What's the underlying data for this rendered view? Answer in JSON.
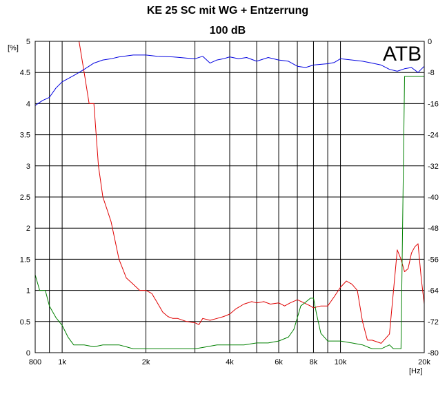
{
  "chart_data": {
    "type": "line",
    "title": "KE 25 SC mit WG + Entzerrung",
    "subtitle": "100 dB",
    "logo_text": "ATB",
    "x_unit": "[Hz]",
    "x_scale": "log",
    "xlim": [
      800,
      20000
    ],
    "x_ticks": [
      {
        "value": 800,
        "label": "800"
      },
      {
        "value": 1000,
        "label": "1k"
      },
      {
        "value": 2000,
        "label": "2k"
      },
      {
        "value": 4000,
        "label": "4k"
      },
      {
        "value": 6000,
        "label": "6k"
      },
      {
        "value": 8000,
        "label": "8k"
      },
      {
        "value": 10000,
        "label": "10k"
      },
      {
        "value": 20000,
        "label": "20k"
      }
    ],
    "x_gridlines": [
      800,
      900,
      1000,
      2000,
      3000,
      4000,
      5000,
      6000,
      7000,
      8000,
      9000,
      10000,
      20000
    ],
    "y_left_unit": "[%]",
    "ylim_left": [
      0,
      5
    ],
    "y_left_ticks": [
      "0",
      "0.5",
      "1",
      "1.5",
      "2",
      "2.5",
      "3",
      "3.5",
      "4",
      "4.5",
      "5"
    ],
    "ylim_right": [
      -80,
      0
    ],
    "y_right_ticks": [
      "0",
      "-8",
      "-16",
      "-24",
      "-32",
      "-40",
      "-48",
      "-56",
      "-64",
      "-72",
      "-80"
    ],
    "grid": true,
    "colors": {
      "red": "#e00000",
      "green": "#008000",
      "blue": "#0000e0",
      "grid": "#000000"
    },
    "series": [
      {
        "color": "red",
        "axis": "left",
        "x": [
          800,
          1150,
          1200,
          1250,
          1300,
          1350,
          1400,
          1450,
          1500,
          1600,
          1700,
          1800,
          1900,
          2000,
          2100,
          2200,
          2300,
          2400,
          2500,
          2600,
          2800,
          3000,
          3100,
          3200,
          3400,
          3600,
          3800,
          4000,
          4200,
          4500,
          4800,
          5000,
          5300,
          5600,
          6000,
          6300,
          6600,
          7000,
          7400,
          7800,
          8000,
          8500,
          9000,
          9500,
          10000,
          10500,
          11000,
          11500,
          12000,
          12500,
          13000,
          14000,
          15000,
          16000,
          16500,
          17000,
          17500,
          18000,
          18500,
          19000,
          19500,
          20000
        ],
        "y": [
          5,
          5,
          4.5,
          4.0,
          4.0,
          3.0,
          2.5,
          2.3,
          2.1,
          1.5,
          1.2,
          1.1,
          1.0,
          1.0,
          0.95,
          0.8,
          0.65,
          0.58,
          0.55,
          0.55,
          0.5,
          0.48,
          0.45,
          0.55,
          0.52,
          0.55,
          0.58,
          0.62,
          0.7,
          0.78,
          0.82,
          0.8,
          0.82,
          0.78,
          0.8,
          0.75,
          0.8,
          0.85,
          0.8,
          0.75,
          0.72,
          0.75,
          0.75,
          0.9,
          1.05,
          1.15,
          1.1,
          1.0,
          0.5,
          0.2,
          0.2,
          0.15,
          0.3,
          1.65,
          1.5,
          1.3,
          1.35,
          1.6,
          1.7,
          1.75,
          1.2,
          0.78
        ]
      },
      {
        "color": "green",
        "axis": "right",
        "x": [
          800,
          830,
          870,
          900,
          950,
          1000,
          1050,
          1100,
          1200,
          1300,
          1400,
          1500,
          1600,
          1700,
          1800,
          2000,
          2200,
          2500,
          2800,
          3000,
          3300,
          3600,
          4000,
          4500,
          5000,
          5500,
          6000,
          6500,
          6800,
          7000,
          7200,
          7500,
          7800,
          8000,
          8200,
          8500,
          9000,
          9500,
          10000,
          11000,
          12000,
          13000,
          14000,
          15000,
          15500,
          16000,
          16500,
          17000,
          17500,
          18000,
          18500,
          19000,
          20000
        ],
        "y": [
          -60,
          -64,
          -64,
          -68,
          -71,
          -73,
          -76,
          -78,
          -78,
          -78.5,
          -78,
          -78,
          -78,
          -78.5,
          -79,
          -79,
          -79,
          -79,
          -79,
          -79,
          -78.5,
          -78,
          -78,
          -78,
          -77.5,
          -77.5,
          -77,
          -76,
          -74,
          -71,
          -68,
          -67,
          -66,
          -66,
          -70,
          -75,
          -77,
          -77,
          -77,
          -77.5,
          -78,
          -79,
          -79,
          -78,
          -79,
          -79,
          -79,
          -9,
          -9,
          -9,
          -9,
          -9,
          -9
        ]
      },
      {
        "color": "blue",
        "axis": "left",
        "x": [
          800,
          850,
          900,
          950,
          1000,
          1050,
          1100,
          1150,
          1200,
          1300,
          1400,
          1500,
          1600,
          1800,
          2000,
          2200,
          2500,
          2800,
          3000,
          3200,
          3400,
          3600,
          3800,
          4000,
          4300,
          4600,
          5000,
          5500,
          6000,
          6500,
          7000,
          7500,
          8000,
          8500,
          9000,
          9500,
          10000,
          11000,
          12000,
          13000,
          14000,
          15000,
          16000,
          17000,
          18000,
          19000,
          20000
        ],
        "y": [
          3.97,
          4.05,
          4.1,
          4.25,
          4.35,
          4.4,
          4.45,
          4.5,
          4.55,
          4.65,
          4.7,
          4.72,
          4.75,
          4.78,
          4.78,
          4.76,
          4.75,
          4.73,
          4.72,
          4.76,
          4.65,
          4.7,
          4.72,
          4.75,
          4.72,
          4.74,
          4.68,
          4.74,
          4.7,
          4.68,
          4.6,
          4.58,
          4.62,
          4.63,
          4.64,
          4.66,
          4.72,
          4.7,
          4.68,
          4.65,
          4.62,
          4.55,
          4.52,
          4.56,
          4.58,
          4.5,
          4.6
        ]
      }
    ]
  }
}
